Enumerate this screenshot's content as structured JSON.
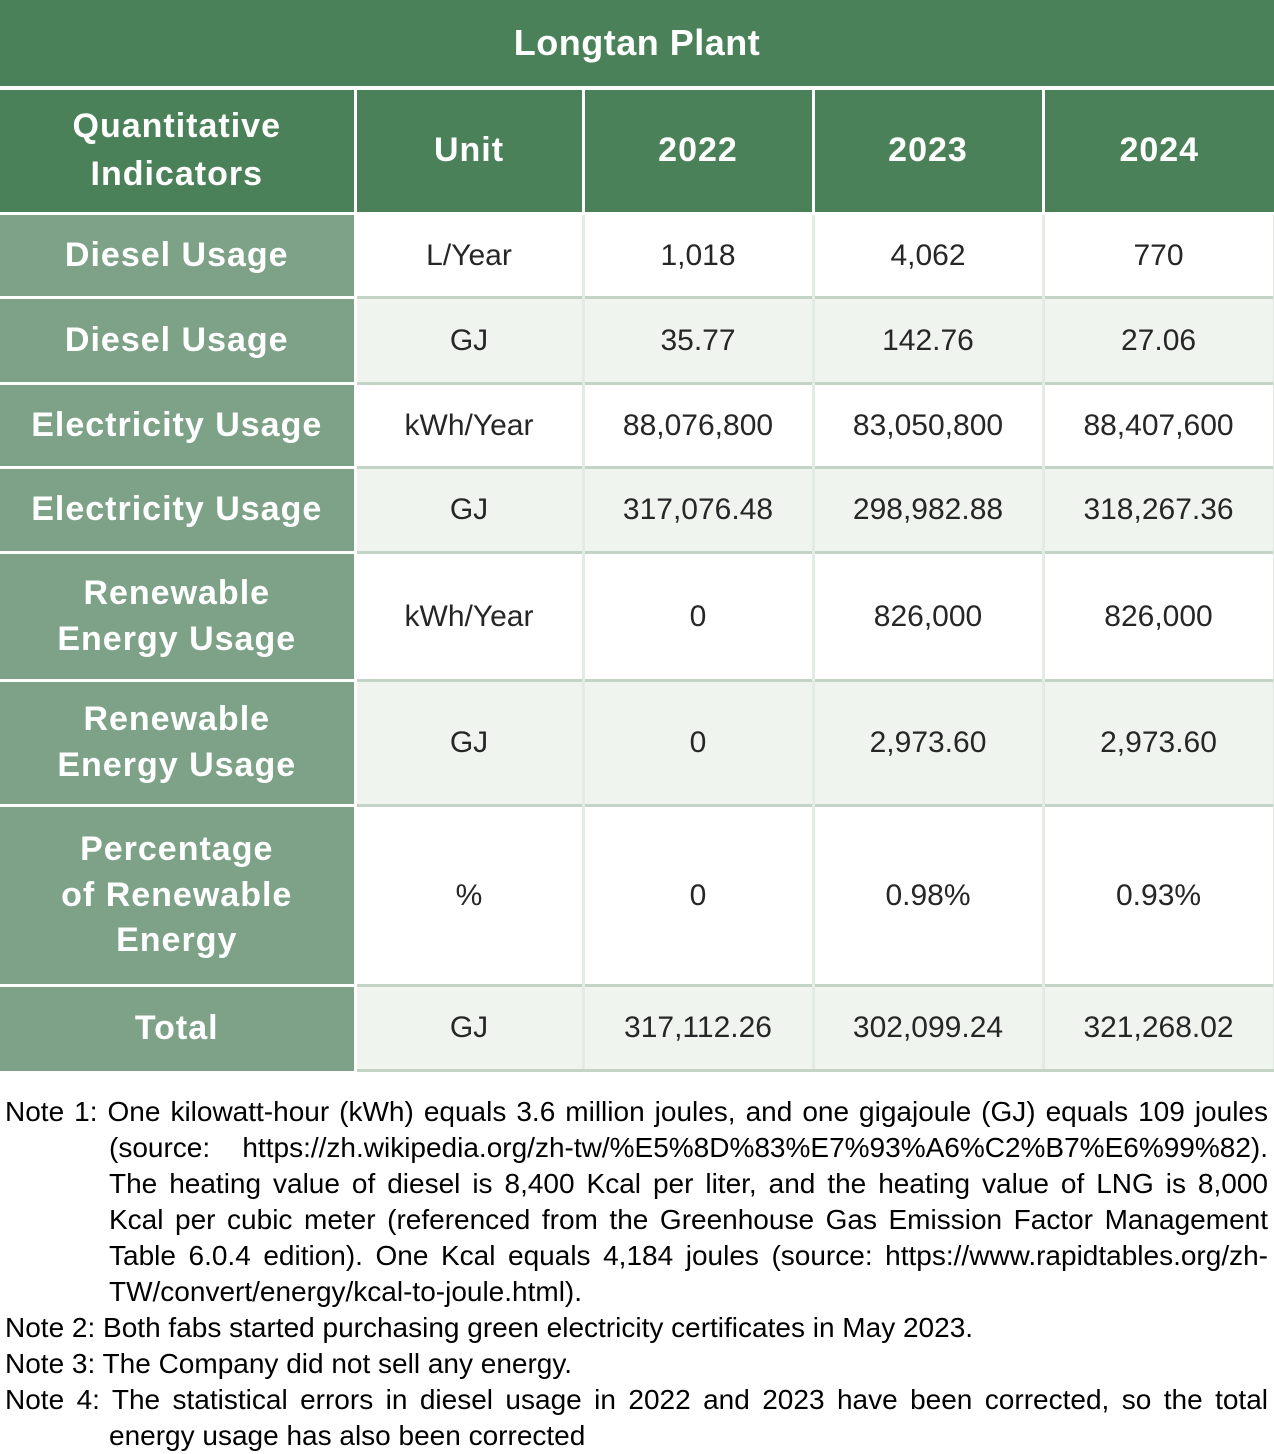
{
  "title": "Longtan Plant",
  "colors": {
    "header_green": "#4B8159",
    "label_green": "#7DA287",
    "row_alt_green": "#EFF4EF",
    "row_white": "#FFFFFF",
    "grid_line_green": "#C3D4C6",
    "grid_line_light": "#E3ECE4",
    "text_dark": "#262626",
    "text_white": "#FFFFFF"
  },
  "table": {
    "headers": [
      "Quantitative\nIndicators",
      "Unit",
      "2022",
      "2023",
      "2024"
    ],
    "rows": [
      {
        "indicator": "Diesel Usage",
        "cells": [
          "L/Year",
          "1,018",
          "4,062",
          "770"
        ]
      },
      {
        "indicator": "Diesel Usage",
        "cells": [
          "GJ",
          "35.77",
          "142.76",
          "27.06"
        ]
      },
      {
        "indicator": "Electricity Usage",
        "cells": [
          "kWh/Year",
          "88,076,800",
          "83,050,800",
          "88,407,600"
        ]
      },
      {
        "indicator": "Electricity Usage",
        "cells": [
          "GJ",
          "317,076.48",
          "298,982.88",
          "318,267.36"
        ]
      },
      {
        "indicator": "Renewable\nEnergy Usage",
        "cells": [
          "kWh/Year",
          "0",
          "826,000",
          "826,000"
        ]
      },
      {
        "indicator": "Renewable\nEnergy Usage",
        "cells": [
          "GJ",
          "0",
          "2,973.60",
          "2,973.60"
        ]
      },
      {
        "indicator": "Percentage\nof Renewable\nEnergy",
        "cells": [
          "%",
          "0",
          "0.98%",
          "0.93%"
        ]
      },
      {
        "indicator": "Total",
        "cells": [
          "GJ",
          "317,112.26",
          "302,099.24",
          "321,268.02"
        ]
      }
    ]
  },
  "notes": [
    {
      "label": "Note 1:",
      "lines": [
        "One kilowatt-hour (kWh) equals 3.6 million joules, and one gigajoule (GJ) equals 109 joules",
        "(source: https://zh.wikipedia.org/zh-tw/%E5%8D%83%E7%93%A6%C2%B7%E6%99%82).",
        "The heating value of diesel is 8,400 Kcal per liter, and the heating value of LNG is 8,000",
        "Kcal per cubic meter (referenced from the Greenhouse Gas Emission Factor Management",
        "Table 6.0.4 edition). One Kcal equals 4,184 joules (source: https://www.rapidtables.org/zh-",
        "TW/convert/energy/kcal-to-joule.html)."
      ]
    },
    {
      "label": "Note 2:",
      "lines": [
        "Both fabs started purchasing green electricity certificates in May 2023."
      ]
    },
    {
      "label": "Note 3:",
      "lines": [
        "The Company did not sell any energy."
      ]
    },
    {
      "label": "Note 4:",
      "lines": [
        "The statistical errors in diesel usage in 2022 and 2023 have been corrected, so the total",
        "energy usage has also been corrected"
      ]
    }
  ]
}
